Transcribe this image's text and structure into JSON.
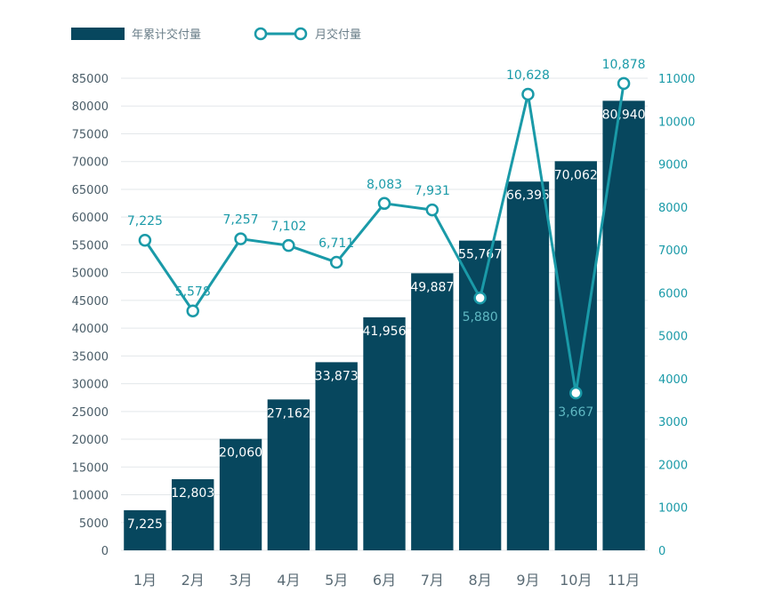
{
  "chart_data": {
    "type": "bar",
    "categories": [
      "1月",
      "2月",
      "3月",
      "4月",
      "5月",
      "6月",
      "7月",
      "8月",
      "9月",
      "10月",
      "11月"
    ],
    "series": [
      {
        "name": "年累计交付量",
        "type": "bar",
        "axis": "left",
        "color": "#07475e",
        "values": [
          7225,
          12803,
          20060,
          27162,
          33873,
          41956,
          49887,
          55767,
          66395,
          70062,
          80940
        ],
        "labels": [
          "7,225",
          "12,803",
          "20,060",
          "27,162",
          "33,873",
          "41,956",
          "49,887",
          "55,767",
          "66,395",
          "70,062",
          "80,940"
        ]
      },
      {
        "name": "月交付量",
        "type": "line",
        "axis": "right",
        "color": "#1a9aa8",
        "values": [
          7225,
          5578,
          7257,
          7102,
          6711,
          8083,
          7931,
          5880,
          10628,
          3667,
          10878
        ],
        "labels": [
          "7,225",
          "5,578",
          "7,257",
          "7,102",
          "6,711",
          "8,083",
          "7,931",
          "5,880",
          "10,628",
          "3,667",
          "10,878"
        ]
      }
    ],
    "y_left": {
      "ylim": [
        0,
        85000
      ],
      "ticks": [
        "0",
        "5000",
        "10000",
        "15000",
        "20000",
        "25000",
        "30000",
        "35000",
        "40000",
        "45000",
        "50000",
        "55000",
        "60000",
        "65000",
        "70000",
        "75000",
        "80000",
        "85000"
      ]
    },
    "y_right": {
      "ylim": [
        0,
        11000
      ],
      "ticks": [
        "0",
        "1000",
        "2000",
        "3000",
        "4000",
        "5000",
        "6000",
        "7000",
        "8000",
        "9000",
        "10000",
        "11000"
      ]
    },
    "title": "",
    "xlabel": "",
    "ylabel": "",
    "grid": true,
    "legend_position": "top-left"
  }
}
